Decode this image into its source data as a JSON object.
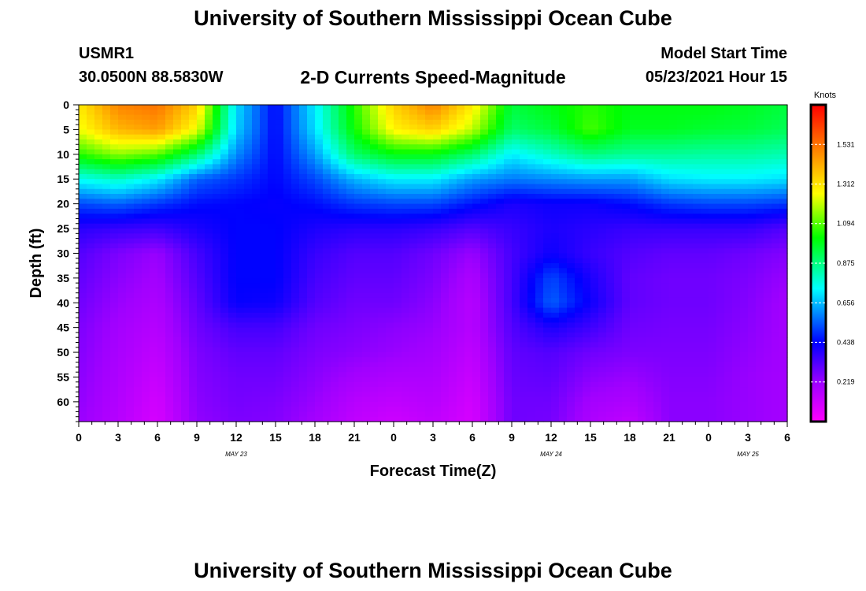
{
  "header": {
    "title_top": "University of Southern Mississippi Ocean Cube",
    "title_bottom": "University of Southern Mississippi Ocean Cube",
    "station": "USMR1",
    "coords": "30.0500N  88.5830W",
    "plot_title": "2-D Currents Speed-Magnitude",
    "model_start_label": "Model Start Time",
    "model_start_value": "05/23/2021 Hour 15"
  },
  "chart_data": {
    "type": "heatmap",
    "title": "2-D Currents Speed-Magnitude",
    "xlabel": "Forecast Time(Z)",
    "ylabel": "Depth (ft)",
    "x_tick_labels": [
      "0",
      "3",
      "6",
      "9",
      "12",
      "15",
      "18",
      "21",
      "0",
      "3",
      "6",
      "9",
      "12",
      "15",
      "18",
      "21",
      "0",
      "3",
      "6"
    ],
    "x_hours_from_start": [
      0,
      3,
      6,
      9,
      12,
      15,
      18,
      21,
      24,
      27,
      30,
      33,
      36,
      39,
      42,
      45,
      48,
      51,
      54
    ],
    "xlim_hours": [
      0,
      54
    ],
    "date_labels": [
      {
        "text": "MAY 23",
        "hour": 12
      },
      {
        "text": "MAY 24",
        "hour": 36
      },
      {
        "text": "MAY 25",
        "hour": 51
      }
    ],
    "y_ticks": [
      0,
      5,
      10,
      15,
      20,
      25,
      30,
      35,
      40,
      45,
      50,
      55,
      60
    ],
    "ylim": [
      0,
      64
    ],
    "y_inverted": true,
    "colorbar": {
      "label": "Knots",
      "ticks": [
        1.531,
        1.312,
        1.094,
        0.875,
        0.656,
        0.438,
        0.219
      ],
      "tick_labels": [
        "1.531",
        "1.312",
        "1.094",
        "0.875",
        "0.656",
        "0.438",
        "0.219"
      ],
      "range": [
        0,
        1.75
      ]
    },
    "grid_hours": [
      0,
      3,
      6,
      9,
      12,
      15,
      18,
      21,
      24,
      27,
      30,
      33,
      36,
      39,
      42,
      45,
      48,
      51,
      54
    ],
    "grid_depths": [
      0,
      5,
      10,
      15,
      20,
      25,
      30,
      35,
      40,
      45,
      50,
      55,
      60,
      64
    ],
    "values": [
      [
        1.3,
        1.5,
        1.53,
        1.35,
        0.7,
        0.44,
        0.72,
        1.05,
        1.35,
        1.5,
        1.3,
        0.95,
        1.0,
        1.05,
        1.0,
        1.0,
        1.0,
        0.98,
        0.95
      ],
      [
        1.25,
        1.4,
        1.45,
        1.25,
        0.68,
        0.44,
        0.7,
        1.02,
        1.28,
        1.35,
        1.2,
        0.9,
        0.95,
        1.08,
        0.98,
        0.98,
        0.96,
        0.95,
        0.92
      ],
      [
        1.05,
        1.15,
        1.1,
        0.9,
        0.6,
        0.44,
        0.62,
        0.9,
        1.0,
        1.0,
        0.9,
        0.72,
        0.8,
        0.88,
        0.85,
        0.85,
        0.84,
        0.84,
        0.82
      ],
      [
        0.75,
        0.8,
        0.72,
        0.55,
        0.5,
        0.44,
        0.52,
        0.65,
        0.72,
        0.72,
        0.62,
        0.58,
        0.6,
        0.62,
        0.62,
        0.7,
        0.72,
        0.72,
        0.7
      ],
      [
        0.52,
        0.55,
        0.5,
        0.45,
        0.44,
        0.43,
        0.45,
        0.5,
        0.52,
        0.52,
        0.46,
        0.4,
        0.42,
        0.42,
        0.45,
        0.5,
        0.52,
        0.52,
        0.5
      ],
      [
        0.38,
        0.36,
        0.35,
        0.4,
        0.44,
        0.44,
        0.4,
        0.38,
        0.38,
        0.36,
        0.32,
        0.36,
        0.4,
        0.38,
        0.36,
        0.36,
        0.36,
        0.36,
        0.32
      ],
      [
        0.32,
        0.26,
        0.22,
        0.34,
        0.44,
        0.44,
        0.36,
        0.32,
        0.32,
        0.28,
        0.22,
        0.34,
        0.42,
        0.36,
        0.32,
        0.3,
        0.3,
        0.28,
        0.25
      ],
      [
        0.3,
        0.24,
        0.2,
        0.32,
        0.44,
        0.44,
        0.34,
        0.3,
        0.3,
        0.26,
        0.18,
        0.34,
        0.52,
        0.4,
        0.3,
        0.28,
        0.28,
        0.26,
        0.22
      ],
      [
        0.28,
        0.22,
        0.18,
        0.3,
        0.43,
        0.42,
        0.32,
        0.28,
        0.28,
        0.24,
        0.16,
        0.34,
        0.55,
        0.42,
        0.3,
        0.28,
        0.28,
        0.25,
        0.2
      ],
      [
        0.26,
        0.2,
        0.16,
        0.28,
        0.34,
        0.34,
        0.28,
        0.26,
        0.24,
        0.22,
        0.16,
        0.32,
        0.4,
        0.35,
        0.28,
        0.27,
        0.27,
        0.24,
        0.2
      ],
      [
        0.25,
        0.19,
        0.14,
        0.26,
        0.3,
        0.3,
        0.26,
        0.24,
        0.22,
        0.2,
        0.14,
        0.3,
        0.32,
        0.28,
        0.26,
        0.26,
        0.26,
        0.23,
        0.2
      ],
      [
        0.24,
        0.18,
        0.12,
        0.25,
        0.28,
        0.28,
        0.24,
        0.2,
        0.18,
        0.18,
        0.12,
        0.29,
        0.3,
        0.24,
        0.22,
        0.25,
        0.25,
        0.22,
        0.2
      ],
      [
        0.23,
        0.17,
        0.1,
        0.24,
        0.27,
        0.26,
        0.22,
        0.16,
        0.14,
        0.16,
        0.1,
        0.28,
        0.28,
        0.2,
        0.18,
        0.24,
        0.24,
        0.22,
        0.2
      ],
      [
        0.22,
        0.16,
        0.09,
        0.23,
        0.26,
        0.25,
        0.2,
        0.14,
        0.11,
        0.14,
        0.09,
        0.28,
        0.27,
        0.18,
        0.14,
        0.24,
        0.24,
        0.22,
        0.2
      ]
    ]
  }
}
